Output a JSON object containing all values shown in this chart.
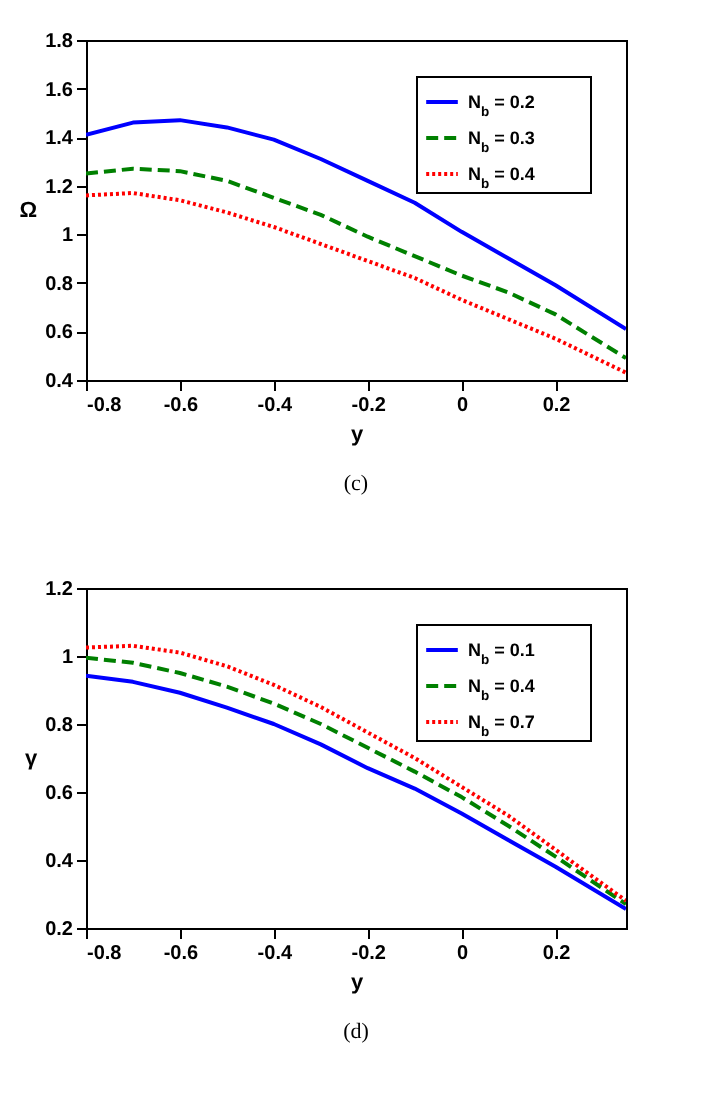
{
  "chart_data": [
    {
      "type": "line",
      "xlabel": "y",
      "ylabel": "Ω",
      "annotations": [
        "(c)"
      ],
      "x": [
        -0.8,
        -0.7,
        -0.6,
        -0.5,
        -0.4,
        -0.3,
        -0.2,
        -0.1,
        0,
        0.1,
        0.2,
        0.35
      ],
      "xlim": [
        -0.8,
        0.35
      ],
      "xticks": [
        -0.8,
        -0.6,
        -0.4,
        -0.2,
        0,
        0.2
      ],
      "ylim": [
        0.4,
        1.8
      ],
      "yticks": [
        0.4,
        0.6,
        0.8,
        1,
        1.2,
        1.4,
        1.6,
        1.8
      ],
      "grid": false,
      "legend": "top right",
      "marker": "none",
      "series": [
        {
          "name": "N$_{b}$ = 0.2",
          "color": "#0000ff",
          "line_style": "solid",
          "values": [
            1.41,
            1.46,
            1.47,
            1.44,
            1.39,
            1.31,
            1.22,
            1.13,
            1.01,
            0.9,
            0.79,
            0.61
          ]
        },
        {
          "name": "N$_{b}$ = 0.3",
          "color": "#008000",
          "line_style": "dashed",
          "values": [
            1.25,
            1.27,
            1.26,
            1.22,
            1.15,
            1.08,
            0.99,
            0.91,
            0.83,
            0.76,
            0.67,
            0.49
          ]
        },
        {
          "name": "N$_{b}$ = 0.4",
          "color": "#ff0000",
          "line_style": "dotted",
          "values": [
            1.16,
            1.17,
            1.14,
            1.09,
            1.03,
            0.96,
            0.89,
            0.82,
            0.73,
            0.65,
            0.57,
            0.43
          ]
        }
      ]
    },
    {
      "type": "line",
      "xlabel": "y",
      "ylabel": "γ",
      "annotations": [
        "(d)"
      ],
      "x": [
        -0.8,
        -0.7,
        -0.6,
        -0.5,
        -0.4,
        -0.3,
        -0.2,
        -0.1,
        0,
        0.1,
        0.2,
        0.35
      ],
      "xlim": [
        -0.8,
        0.35
      ],
      "xticks": [
        -0.8,
        -0.6,
        -0.4,
        -0.2,
        0,
        0.2
      ],
      "ylim": [
        0.2,
        1.2
      ],
      "yticks": [
        0.2,
        0.4,
        0.6,
        0.8,
        1,
        1.2
      ],
      "grid": false,
      "legend": "top right",
      "marker": "none",
      "series": [
        {
          "name": "N$_{b}$ = 0.1",
          "color": "#0000ff",
          "line_style": "solid",
          "values": [
            0.942,
            0.924,
            0.892,
            0.848,
            0.8,
            0.74,
            0.67,
            0.61,
            0.537,
            0.458,
            0.38,
            0.256
          ]
        },
        {
          "name": "N$_{b}$ = 0.4",
          "color": "#008000",
          "line_style": "dashed",
          "values": [
            0.995,
            0.98,
            0.95,
            0.91,
            0.86,
            0.8,
            0.73,
            0.66,
            0.585,
            0.5,
            0.41,
            0.27
          ]
        },
        {
          "name": "N$_{b}$ = 0.7",
          "color": "#ff0000",
          "line_style": "dotted",
          "values": [
            1.025,
            1.03,
            1.01,
            0.97,
            0.915,
            0.85,
            0.775,
            0.7,
            0.615,
            0.53,
            0.43,
            0.28
          ]
        }
      ]
    }
  ]
}
